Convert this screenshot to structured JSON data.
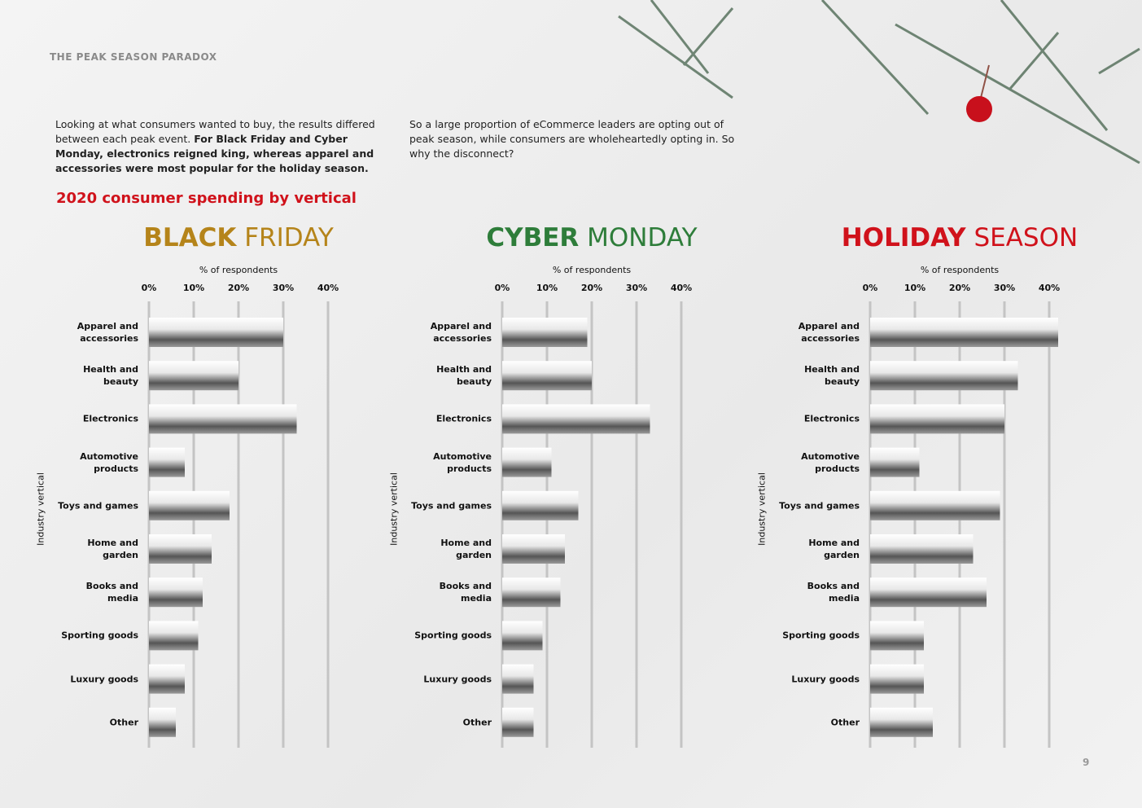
{
  "header": "THE PEAK SEASON PARADOX",
  "intro": {
    "plain": "Looking at what consumers wanted to buy, the results differed between each peak event. ",
    "bold": "For Black Friday and Cyber Monday, electronics reigned king, whereas apparel and accessories were most popular for the holiday season."
  },
  "aside": "So a large proportion of eCommerce leaders are opting out of peak season, while consumers are wholeheartedly opting in. So why the disconnect?",
  "section_title": "2020 consumer spending by vertical",
  "page_number": "9",
  "chart_data": [
    {
      "type": "bar",
      "orientation": "horizontal",
      "title": {
        "strong": "BLACK",
        "light": "FRIDAY"
      },
      "title_color": "#b5841a",
      "xlabel": "% of respondents",
      "ylabel": "Industry vertical",
      "categories": [
        "Apparel and\naccessories",
        "Health and\nbeauty",
        "Electronics",
        "Automotive\nproducts",
        "Toys and games",
        "Home and\ngarden",
        "Books and\nmedia",
        "Sporting goods",
        "Luxury goods",
        "Other"
      ],
      "values": [
        30,
        20,
        33,
        8,
        18,
        14,
        12,
        11,
        8,
        6
      ],
      "xlim": [
        0,
        44
      ],
      "xticks": [
        {
          "value": 0,
          "label": "0%"
        },
        {
          "value": 10,
          "label": "10%"
        },
        {
          "value": 20,
          "label": "20%"
        },
        {
          "value": 30,
          "label": "30%"
        },
        {
          "value": 40,
          "label": "40%"
        }
      ],
      "grid": true
    },
    {
      "type": "bar",
      "orientation": "horizontal",
      "title": {
        "strong": "CYBER",
        "light": "MONDAY"
      },
      "title_color": "#2e7d3a",
      "xlabel": "% of respondents",
      "ylabel": "Industry vertical",
      "categories": [
        "Apparel and\naccessories",
        "Health and\nbeauty",
        "Electronics",
        "Automotive\nproducts",
        "Toys and games",
        "Home and\ngarden",
        "Books and\nmedia",
        "Sporting goods",
        "Luxury goods",
        "Other"
      ],
      "values": [
        19,
        20,
        33,
        11,
        17,
        14,
        13,
        9,
        7,
        7
      ],
      "xlim": [
        0,
        44
      ],
      "xticks": [
        {
          "value": 0,
          "label": "0%"
        },
        {
          "value": 10,
          "label": "10%"
        },
        {
          "value": 20,
          "label": "20%"
        },
        {
          "value": 30,
          "label": "30%"
        },
        {
          "value": 40,
          "label": "40%"
        }
      ],
      "grid": true
    },
    {
      "type": "bar",
      "orientation": "horizontal",
      "title": {
        "strong": "HOLIDAY",
        "light": "SEASON"
      },
      "title_color": "#d0121b",
      "xlabel": "% of respondents",
      "ylabel": "Industry vertical",
      "categories": [
        "Apparel and\naccessories",
        "Health and\nbeauty",
        "Electronics",
        "Automotive\nproducts",
        "Toys and games",
        "Home and\ngarden",
        "Books and\nmedia",
        "Sporting goods",
        "Luxury goods",
        "Other"
      ],
      "values": [
        42,
        33,
        30,
        11,
        29,
        23,
        26,
        12,
        12,
        14
      ],
      "xlim": [
        0,
        44
      ],
      "xticks": [
        {
          "value": 0,
          "label": "0%"
        },
        {
          "value": 10,
          "label": "10%"
        },
        {
          "value": 20,
          "label": "20%"
        },
        {
          "value": 30,
          "label": "30%"
        },
        {
          "value": 40,
          "label": "40%"
        }
      ],
      "grid": true
    }
  ]
}
